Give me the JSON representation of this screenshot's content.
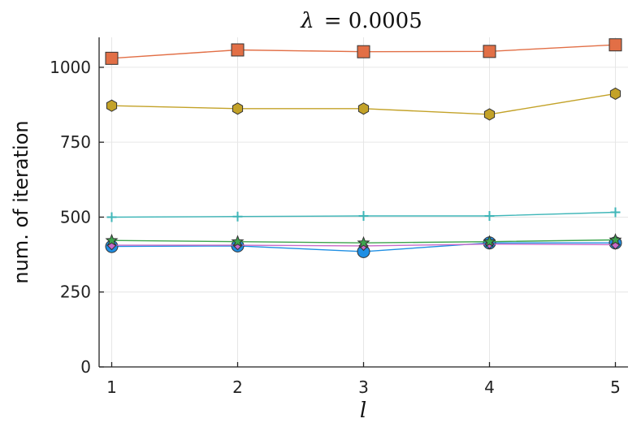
{
  "chart_data": {
    "type": "line",
    "title_symbol": "λ",
    "title_value": "= 0.0005",
    "xlabel": "l",
    "ylabel": "num. of iteration",
    "x": [
      1,
      2,
      3,
      4,
      5
    ],
    "xlim": [
      0.9,
      5.1
    ],
    "ylim": [
      0,
      1100
    ],
    "xticks": [
      1,
      2,
      3,
      4,
      5
    ],
    "yticks": [
      0,
      250,
      500,
      750,
      1000
    ],
    "grid": true,
    "legend": "none",
    "series": [
      {
        "marker": "square",
        "color": "#e26f46",
        "values": [
          1030,
          1058,
          1052,
          1053,
          1075
        ]
      },
      {
        "marker": "hexagon",
        "color": "#c3a228",
        "values": [
          872,
          862,
          862,
          843,
          912
        ]
      },
      {
        "marker": "cross",
        "color": "#3fb6b8",
        "values": [
          500,
          502,
          504,
          504,
          516
        ]
      },
      {
        "marker": "star",
        "color": "#3da44d",
        "values": [
          422,
          418,
          414,
          418,
          424
        ]
      },
      {
        "marker": "diamond",
        "color": "#c86ac8",
        "values": [
          406,
          406,
          404,
          410,
          408
        ]
      },
      {
        "marker": "circle",
        "color": "#1f8fe4",
        "values": [
          402,
          404,
          385,
          414,
          414
        ]
      }
    ]
  }
}
